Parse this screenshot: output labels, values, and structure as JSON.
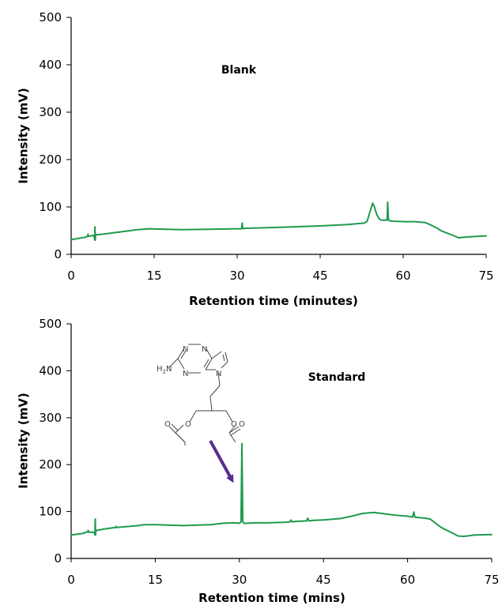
{
  "colors": {
    "trace": "#1f9a4e",
    "arrow": "#5b2d90",
    "axis": "#000000"
  },
  "chart_data": [
    {
      "type": "line",
      "annotation": "Blank",
      "xlabel": "Retention time (minutes)",
      "ylabel": "Intensity (mV)",
      "xlim": [
        0,
        75
      ],
      "ylim": [
        0,
        500
      ],
      "xticks": [
        0,
        15,
        30,
        45,
        60,
        75
      ],
      "yticks": [
        0,
        100,
        200,
        300,
        400,
        500
      ],
      "grid": false,
      "series": [
        {
          "x": [
            0,
            1,
            2.5,
            3,
            3.05,
            3.1,
            4,
            4.2,
            4.25,
            4.3,
            4.35,
            4.4,
            4.5,
            6,
            8,
            10,
            12,
            13,
            14,
            20,
            25,
            30,
            30.8,
            30.9,
            31,
            31.1,
            31.2,
            31.5,
            35,
            40,
            45,
            50,
            53,
            53.5,
            54,
            54.5,
            54.8,
            55.2,
            55.6,
            56,
            57.1,
            57.2,
            57.3,
            57.4,
            57.5,
            58,
            60,
            62,
            63,
            64,
            65,
            66,
            67,
            69,
            70,
            72,
            75
          ],
          "y": [
            31,
            33,
            36,
            38,
            43,
            38,
            40,
            36,
            30,
            58,
            30,
            39,
            41,
            43,
            46,
            49,
            52,
            53,
            54,
            52,
            53,
            54,
            54,
            66,
            55,
            55,
            54,
            55,
            56,
            58,
            60,
            63,
            66,
            70,
            90,
            108,
            100,
            85,
            76,
            72,
            72,
            110,
            78,
            72,
            71,
            70,
            69,
            69,
            68,
            67,
            62,
            56,
            49,
            40,
            35,
            37,
            39
          ]
        }
      ]
    },
    {
      "type": "line",
      "annotation": "Standard",
      "xlabel": "Retention time (mins)",
      "ylabel": "Intensity (mV)",
      "xlim": [
        0,
        75
      ],
      "ylim": [
        0,
        500
      ],
      "xticks": [
        0,
        15,
        30,
        45,
        60,
        75
      ],
      "yticks": [
        0,
        100,
        200,
        300,
        400,
        500
      ],
      "grid": false,
      "series": [
        {
          "x": [
            0,
            2,
            3,
            3.05,
            3.1,
            4,
            4.2,
            4.25,
            4.3,
            4.35,
            4.4,
            4.6,
            6,
            7.9,
            8,
            8.1,
            10,
            12,
            13,
            15,
            20,
            25,
            27,
            29,
            30,
            30.3,
            30.45,
            30.6,
            30.8,
            31.2,
            33,
            35,
            38,
            39,
            39.2,
            39.4,
            40,
            42,
            42.2,
            42.4,
            43,
            45,
            48,
            50,
            52,
            54,
            56,
            58,
            60,
            60.9,
            61.1,
            61.3,
            62,
            63,
            64,
            65,
            66,
            67,
            68,
            69,
            70,
            72,
            75
          ],
          "y": [
            50,
            53,
            57,
            60,
            56,
            56,
            53,
            50,
            84,
            50,
            58,
            60,
            63,
            66,
            68,
            66,
            68,
            70,
            72,
            72,
            70,
            72,
            75,
            76,
            75,
            78,
            245,
            78,
            75,
            75,
            76,
            76,
            77,
            78,
            82,
            78,
            79,
            80,
            86,
            80,
            81,
            82,
            85,
            90,
            96,
            98,
            95,
            92,
            90,
            88,
            99,
            88,
            87,
            86,
            84,
            75,
            66,
            60,
            54,
            48,
            47,
            50,
            51
          ]
        }
      ]
    }
  ],
  "structure_atoms": {
    "n1": "N",
    "n3": "N",
    "n7": "N",
    "n9": "N",
    "h2n": "H",
    "h2n_sub": "2",
    "h2n_n": "N",
    "o_left_ester": "O",
    "o_left_carbonyl": "O",
    "o_right_ester": "O",
    "o_right_carbonyl": "O"
  }
}
